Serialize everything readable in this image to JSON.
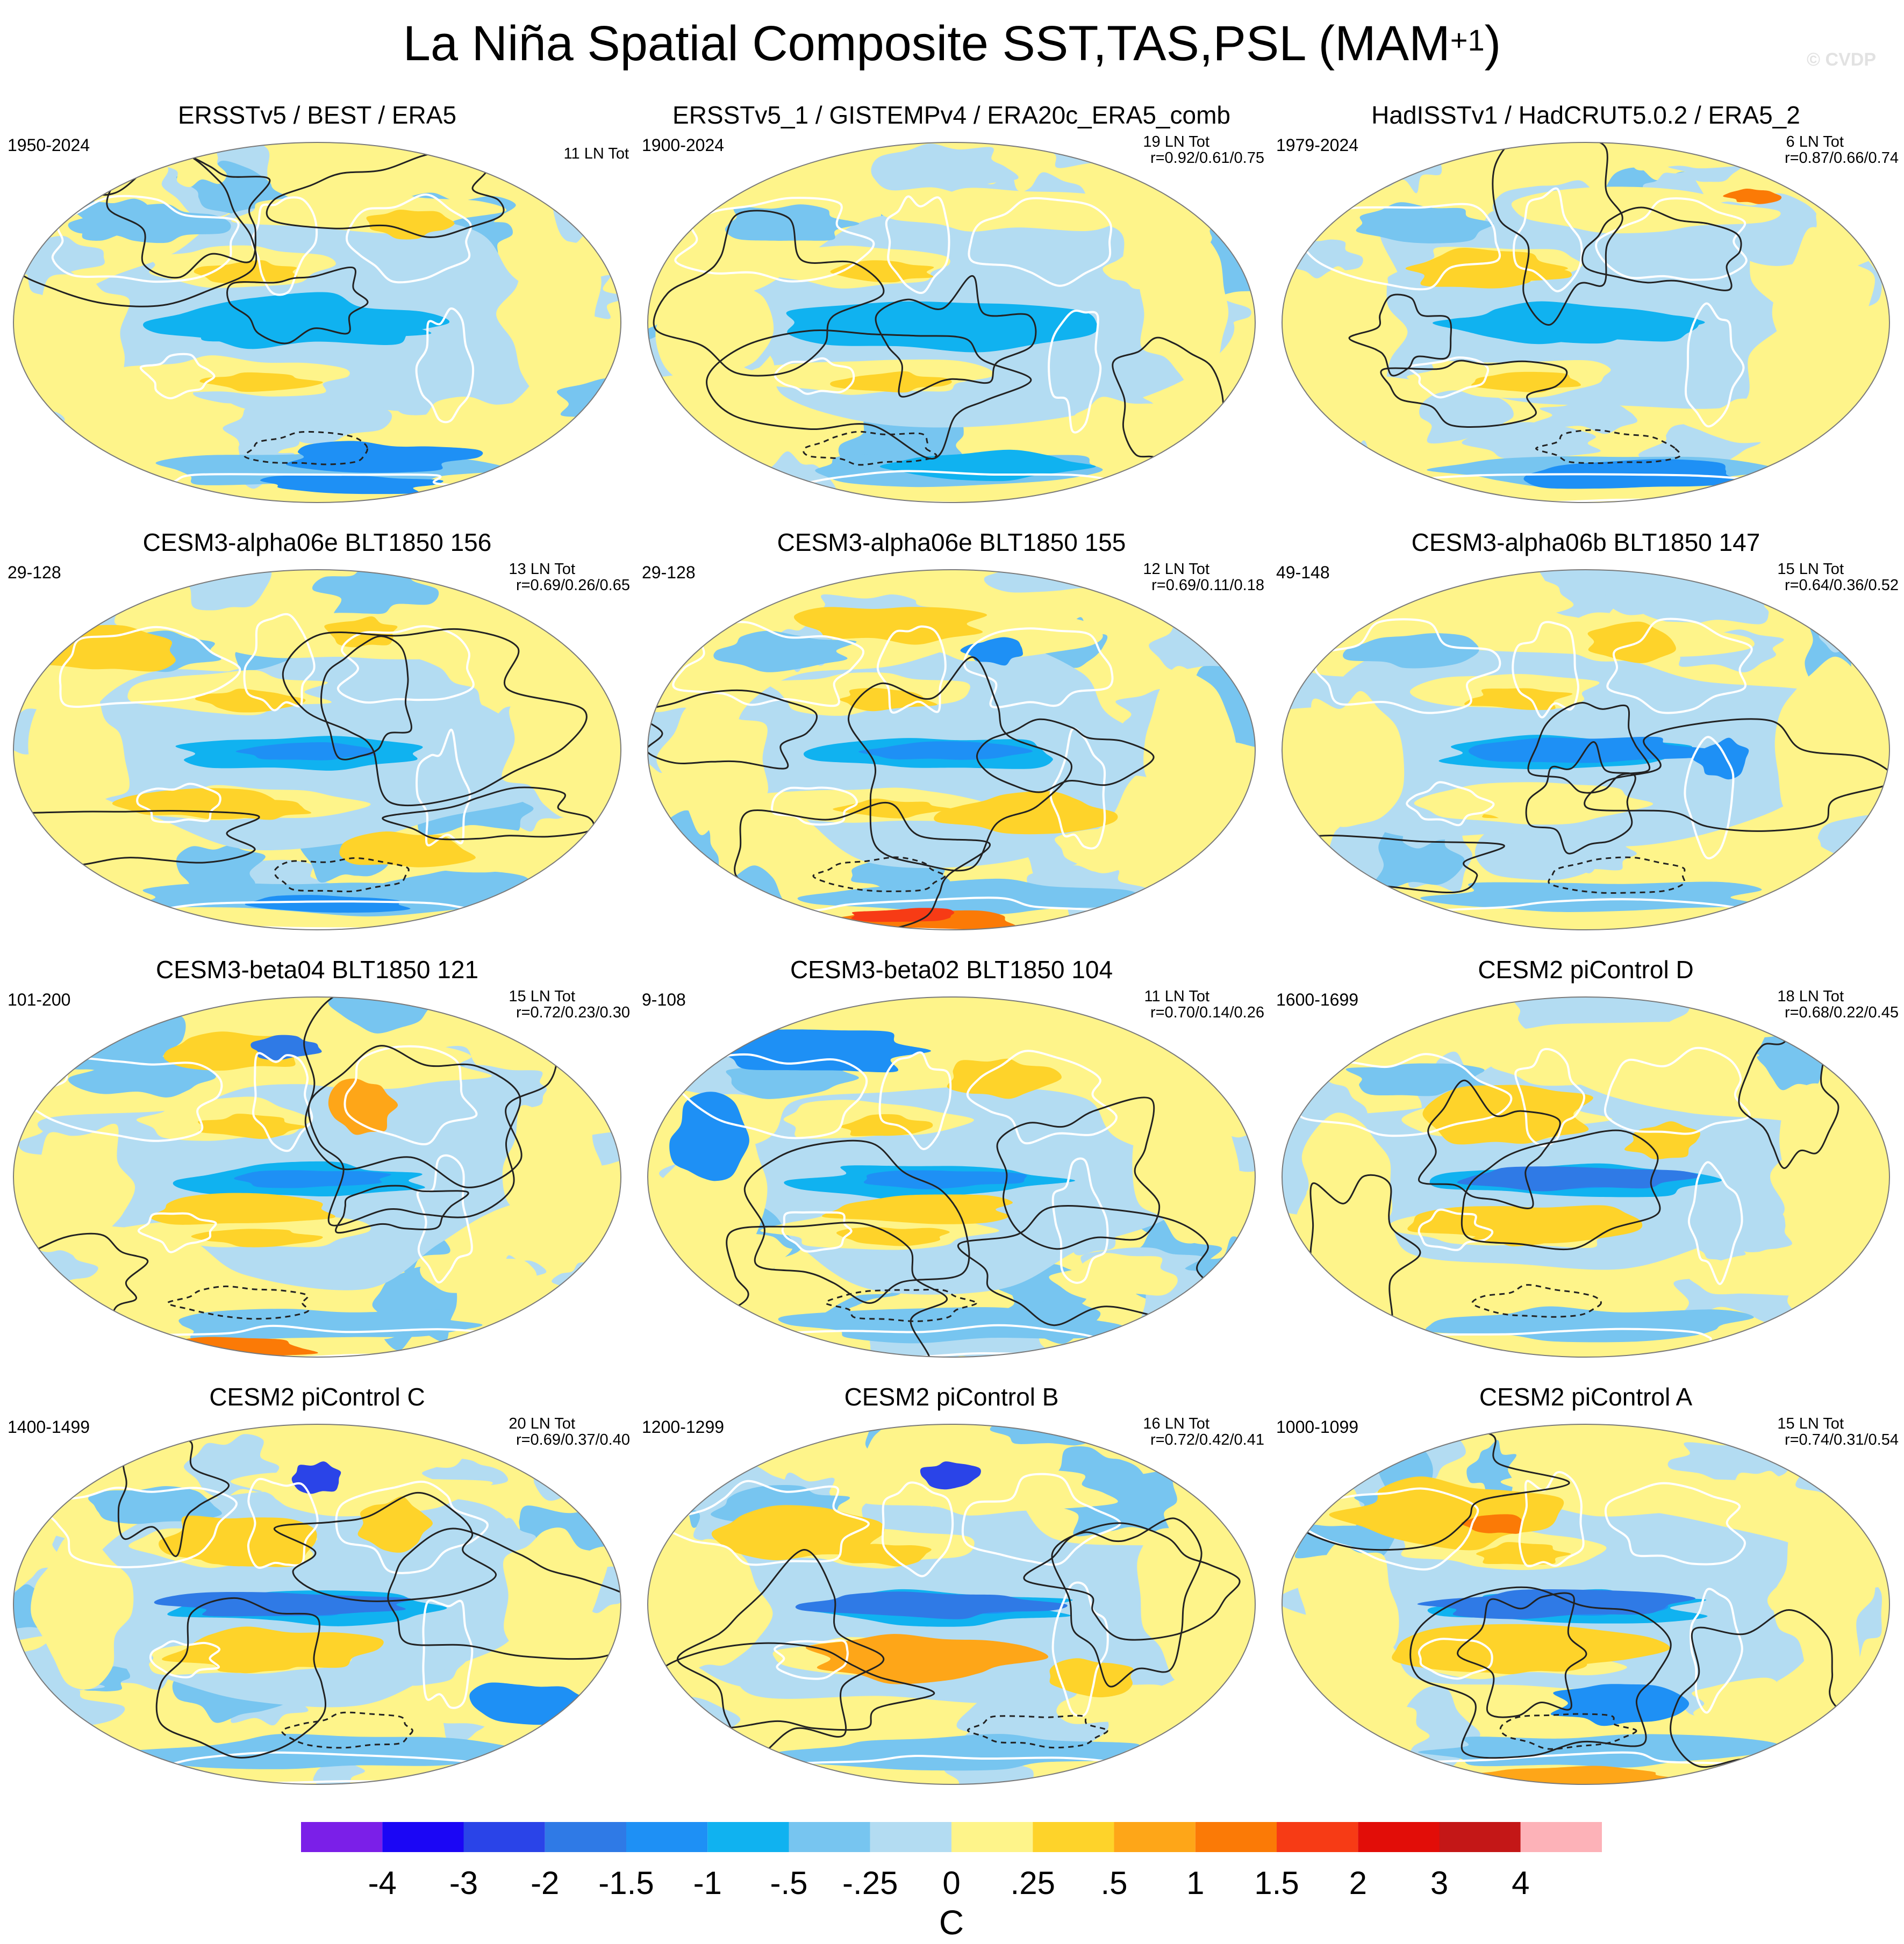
{
  "title": {
    "main": "La Niña Spatial Composite SST,TAS,PSL (MAM",
    "sup": "+1",
    "close": ")"
  },
  "copyright": "© CVDP",
  "panels": [
    {
      "title": "ERSSTv5 / BEST / ERA5",
      "years": "1950-2024",
      "ln": "11 LN Tot",
      "r": "",
      "mod": "obs1"
    },
    {
      "title": "ERSSTv5_1 / GISTEMPv4 / ERA20c_ERA5_comb",
      "years": "1900-2024",
      "ln": "19 LN Tot",
      "r": "r=0.92/0.61/0.75",
      "mod": "obs2"
    },
    {
      "title": "HadISSTv1 / HadCRUT5.0.2 / ERA5_2",
      "years": "1979-2024",
      "ln": "6 LN Tot",
      "r": "r=0.87/0.66/0.74",
      "mod": "obs3"
    },
    {
      "title": "CESM3-alpha06e BLT1850 156",
      "years": "29-128",
      "ln": "13 LN Tot",
      "r": "r=0.69/0.26/0.65",
      "mod": "m1"
    },
    {
      "title": "CESM3-alpha06e BLT1850 155",
      "years": "29-128",
      "ln": "12 LN Tot",
      "r": "r=0.69/0.11/0.18",
      "mod": "m2"
    },
    {
      "title": "CESM3-alpha06b BLT1850 147",
      "years": "49-148",
      "ln": "15 LN Tot",
      "r": "r=0.64/0.36/0.52",
      "mod": "m3"
    },
    {
      "title": "CESM3-beta04 BLT1850 121",
      "years": "101-200",
      "ln": "15 LN Tot",
      "r": "r=0.72/0.23/0.30",
      "mod": "m4"
    },
    {
      "title": "CESM3-beta02 BLT1850 104",
      "years": "9-108",
      "ln": "11 LN Tot",
      "r": "r=0.70/0.14/0.26",
      "mod": "m5"
    },
    {
      "title": "CESM2 piControl D",
      "years": "1600-1699",
      "ln": "18 LN Tot",
      "r": "r=0.68/0.22/0.45",
      "mod": "m6"
    },
    {
      "title": "CESM2 piControl C",
      "years": "1400-1499",
      "ln": "20 LN Tot",
      "r": "r=0.69/0.37/0.40",
      "mod": "m7"
    },
    {
      "title": "CESM2 piControl B",
      "years": "1200-1299",
      "ln": "16 LN Tot",
      "r": "r=0.72/0.42/0.41",
      "mod": "m8"
    },
    {
      "title": "CESM2 piControl A",
      "years": "1000-1099",
      "ln": "15 LN Tot",
      "r": "r=0.74/0.31/0.54",
      "mod": "m9"
    }
  ],
  "chart_data": {
    "type": "heatmap",
    "title": "La Niña Spatial Composite SST,TAS,PSL (MAM+1)",
    "projection": "Robinson",
    "colorbar": {
      "unit": "C",
      "levels": [
        "-4",
        "-3",
        "-2",
        "-1.5",
        "-1",
        "-.5",
        "-.25",
        "0",
        ".25",
        ".5",
        "1",
        "1.5",
        "2",
        "3",
        "4"
      ],
      "colors": [
        "#7b1fe8",
        "#1b06f5",
        "#2a44e8",
        "#2f7ae6",
        "#1e90f5",
        "#10b2f0",
        "#77c5f0",
        "#b3dcf2",
        "#fef48a",
        "#fed32a",
        "#fea618",
        "#fb7a06",
        "#f73b15",
        "#e20d08",
        "#c41717",
        "#fdb2b8"
      ]
    },
    "series": [
      {
        "name": "ERSSTv5 / BEST / ERA5",
        "period": "1950-2024",
        "events": 11
      },
      {
        "name": "ERSSTv5_1 / GISTEMPv4 / ERA20c_ERA5_comb",
        "period": "1900-2024",
        "events": 19,
        "pattern_corr": [
          0.92,
          0.61,
          0.75
        ]
      },
      {
        "name": "HadISSTv1 / HadCRUT5.0.2 / ERA5_2",
        "period": "1979-2024",
        "events": 6,
        "pattern_corr": [
          0.87,
          0.66,
          0.74
        ]
      },
      {
        "name": "CESM3-alpha06e BLT1850 156",
        "period": "29-128",
        "events": 13,
        "pattern_corr": [
          0.69,
          0.26,
          0.65
        ]
      },
      {
        "name": "CESM3-alpha06e BLT1850 155",
        "period": "29-128",
        "events": 12,
        "pattern_corr": [
          0.69,
          0.11,
          0.18
        ]
      },
      {
        "name": "CESM3-alpha06b BLT1850 147",
        "period": "49-148",
        "events": 15,
        "pattern_corr": [
          0.64,
          0.36,
          0.52
        ]
      },
      {
        "name": "CESM3-beta04 BLT1850 121",
        "period": "101-200",
        "events": 15,
        "pattern_corr": [
          0.72,
          0.23,
          0.3
        ]
      },
      {
        "name": "CESM3-beta02 BLT1850 104",
        "period": "9-108",
        "events": 11,
        "pattern_corr": [
          0.7,
          0.14,
          0.26
        ]
      },
      {
        "name": "CESM2 piControl D",
        "period": "1600-1699",
        "events": 18,
        "pattern_corr": [
          0.68,
          0.22,
          0.45
        ]
      },
      {
        "name": "CESM2 piControl C",
        "period": "1400-1499",
        "events": 20,
        "pattern_corr": [
          0.69,
          0.37,
          0.4
        ]
      },
      {
        "name": "CESM2 piControl B",
        "period": "1200-1299",
        "events": 16,
        "pattern_corr": [
          0.72,
          0.42,
          0.41
        ]
      },
      {
        "name": "CESM2 piControl A",
        "period": "1000-1099",
        "events": 15,
        "pattern_corr": [
          0.74,
          0.31,
          0.54
        ]
      }
    ]
  }
}
